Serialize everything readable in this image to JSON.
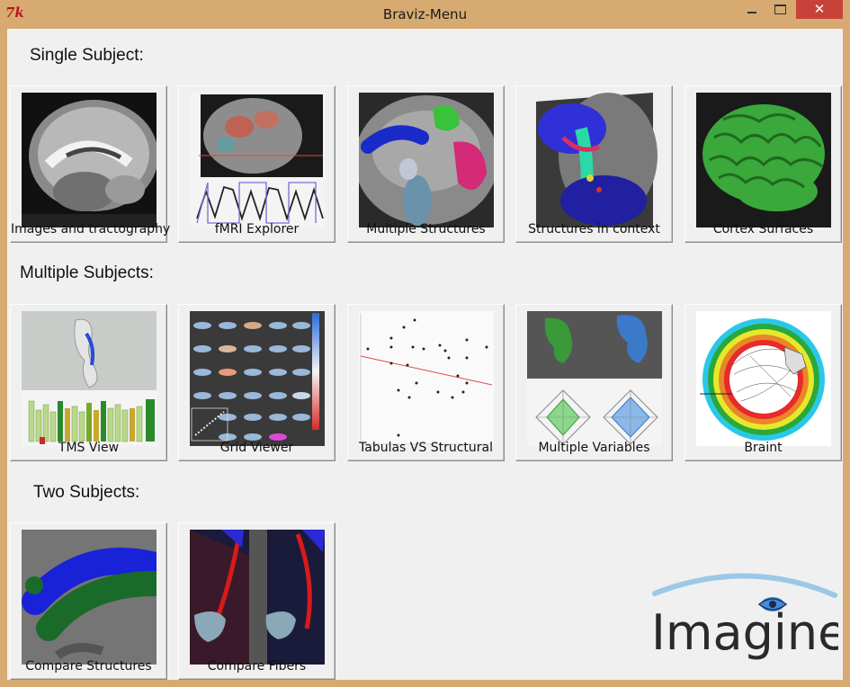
{
  "window": {
    "title": "Braviz-Menu",
    "icon_text": "7k",
    "close_glyph": "✕"
  },
  "sections": {
    "single": "Single Subject:",
    "multiple": "Multiple Subjects:",
    "two": "Two Subjects:"
  },
  "tiles": {
    "images_tractography": "Images and tractography",
    "fmri_explorer": "fMRI Explorer",
    "multiple_structures": "Multiple Structures",
    "structures_in_context": "Structures in context",
    "cortex_surfaces": "Cortex Surfaces",
    "tms_view": "TMS View",
    "grid_viewer": "Grid Viewer",
    "tabulas_vs_structural": "Tabulas VS Structural",
    "multiple_variables": "Multiple Variables",
    "braint": "Braint",
    "compare_structures": "Compare Structures",
    "compare_fibers": "Compare Fibers"
  },
  "logo": {
    "text": "Imagine"
  },
  "icons": [
    "tk-app-icon",
    "minimize-icon",
    "maximize-icon",
    "close-icon"
  ],
  "colors": {
    "titlebar": "#d7aa72",
    "close": "#c7433a",
    "client": "#f0f0f0"
  }
}
